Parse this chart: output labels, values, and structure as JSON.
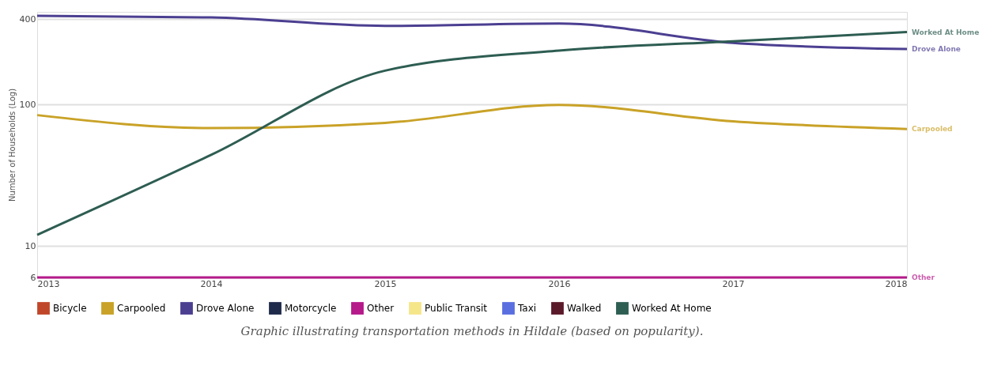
{
  "chart_data": {
    "type": "line",
    "ylabel": "Number of Households (Log)",
    "log": true,
    "grid": "y",
    "legend": "bottom",
    "marker": "none",
    "line_style": "solid",
    "x": [
      2013,
      2014,
      2015,
      2016,
      2017,
      2018
    ],
    "xlim": [
      2013,
      2018
    ],
    "xticks": [
      2013,
      2014,
      2015,
      2016,
      2017,
      2018
    ],
    "ylim": [
      6,
      450
    ],
    "yticks": [
      6,
      10,
      100,
      400
    ],
    "series": [
      {
        "name": "Bicycle",
        "color": "#c0462a",
        "values": [
          null,
          null,
          null,
          null,
          null,
          null
        ]
      },
      {
        "name": "Carpooled",
        "color": "#c9a227",
        "values": [
          84,
          68,
          74,
          99,
          76,
          67
        ]
      },
      {
        "name": "Drove Alone",
        "color": "#4b3f91",
        "values": [
          422,
          411,
          358,
          372,
          272,
          246
        ]
      },
      {
        "name": "Motorcycle",
        "color": "#1f2a4a",
        "values": [
          null,
          null,
          null,
          null,
          null,
          null
        ]
      },
      {
        "name": "Other",
        "color": "#b5198a",
        "values": [
          6,
          6,
          6,
          6,
          6,
          6
        ]
      },
      {
        "name": "Public Transit",
        "color": "#f5e68a",
        "values": [
          null,
          null,
          null,
          null,
          null,
          null
        ]
      },
      {
        "name": "Taxi",
        "color": "#5a6ee0",
        "values": [
          null,
          null,
          null,
          null,
          null,
          null
        ]
      },
      {
        "name": "Walked",
        "color": "#5a1a2a",
        "values": [
          null,
          null,
          null,
          null,
          null,
          null
        ]
      },
      {
        "name": "Worked At Home",
        "color": "#2e5d52",
        "values": [
          12,
          44,
          173,
          240,
          279,
          324
        ]
      }
    ],
    "annotations": [
      "Graphic illustrating transportation methods in Hildale (based on popularity)."
    ]
  }
}
